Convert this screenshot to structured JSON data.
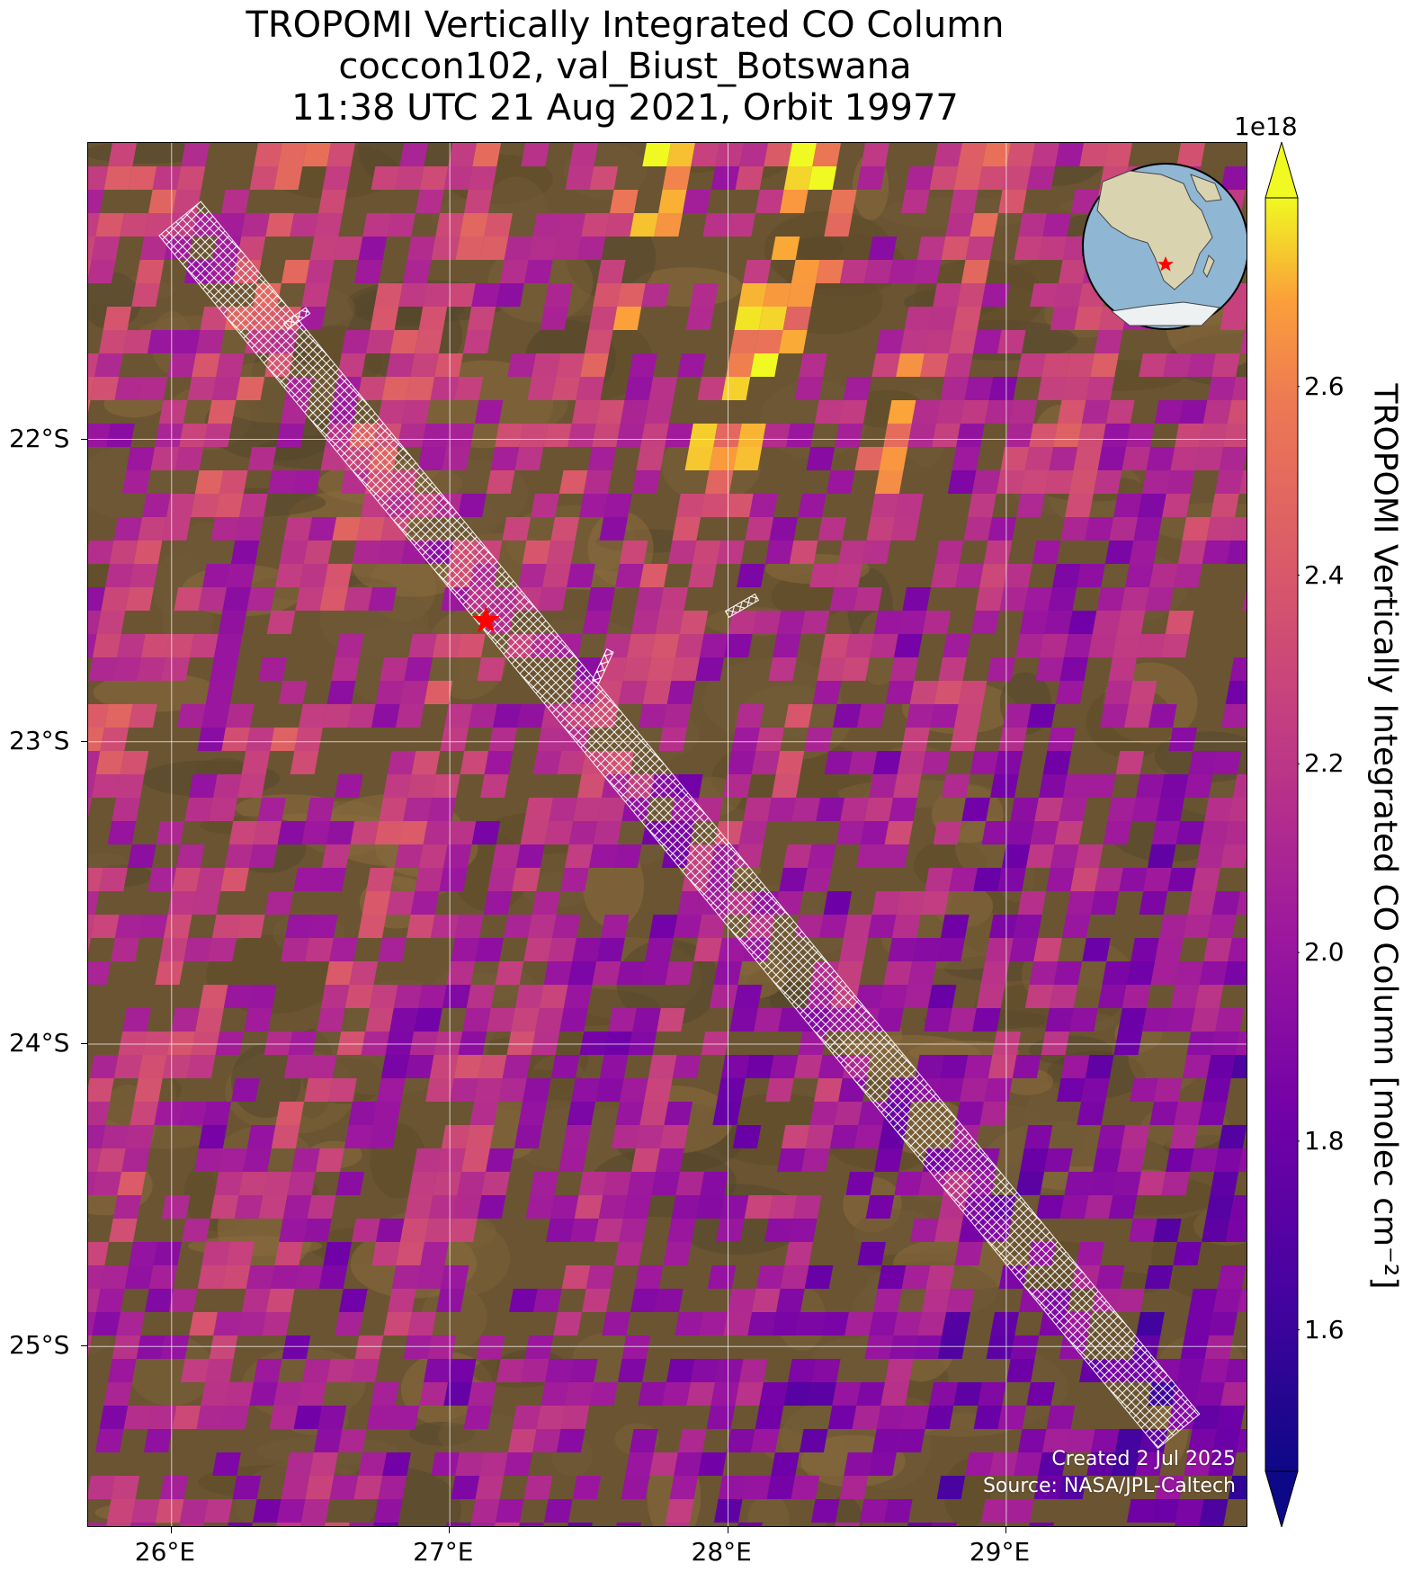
{
  "title": {
    "line1": "TROPOMI Vertically Integrated CO Column",
    "line2": "coccon102, val_Biust_Botswana",
    "line3": "11:38 UTC 21 Aug 2021, Orbit 19977"
  },
  "map": {
    "lon_range": [
      25.7,
      29.87
    ],
    "lat_range": [
      -25.6,
      -21.02
    ],
    "lon_ticks": [
      {
        "value": 26,
        "label": "26°E"
      },
      {
        "value": 27,
        "label": "27°E"
      },
      {
        "value": 28,
        "label": "28°E"
      },
      {
        "value": 29,
        "label": "29°E"
      }
    ],
    "lat_ticks": [
      {
        "value": -22,
        "label": "22°S"
      },
      {
        "value": -23,
        "label": "23°S"
      },
      {
        "value": -24,
        "label": "24°S"
      },
      {
        "value": -25,
        "label": "25°S"
      }
    ],
    "gridlines": true,
    "background": "satellite imagery (brown/olive terrain)",
    "site_marker": {
      "lon": 27.13,
      "lat": -22.6,
      "symbol": "star",
      "color": "#ff0000"
    },
    "overpass_swath_corners": [
      {
        "lon": 26.03,
        "lat": -21.27
      },
      {
        "lon": 29.62,
        "lat": -25.28
      }
    ],
    "inset_globe": {
      "position": "top-right",
      "marker": "star",
      "marker_color": "#ff0000"
    },
    "credit": {
      "line1": "Created 2 Jul 2025",
      "line2": "Source: NASA/JPL-Caltech"
    }
  },
  "colorbar": {
    "label": "TROPOMI Vertically Integrated CO Column [molec cm⁻²]",
    "exponent": "1e18",
    "colormap": "plasma",
    "range": [
      1.45,
      2.8
    ],
    "extend": "both",
    "ticks": [
      {
        "value": 1.6,
        "label": "1.6"
      },
      {
        "value": 1.8,
        "label": "1.8"
      },
      {
        "value": 2.0,
        "label": "2.0"
      },
      {
        "value": 2.2,
        "label": "2.2"
      },
      {
        "value": 2.4,
        "label": "2.4"
      },
      {
        "value": 2.6,
        "label": "2.6"
      }
    ]
  },
  "chart_data": {
    "type": "heatmap",
    "title": "TROPOMI Vertically Integrated CO Column",
    "variable": "Vertically Integrated CO Column",
    "units": "molec cm⁻² (×1e18)",
    "value_range": [
      1.45,
      2.8
    ],
    "typical_values": {
      "west": 2.2,
      "center": 2.1,
      "east_south": 1.85,
      "north_center_max": 2.7
    }
  }
}
